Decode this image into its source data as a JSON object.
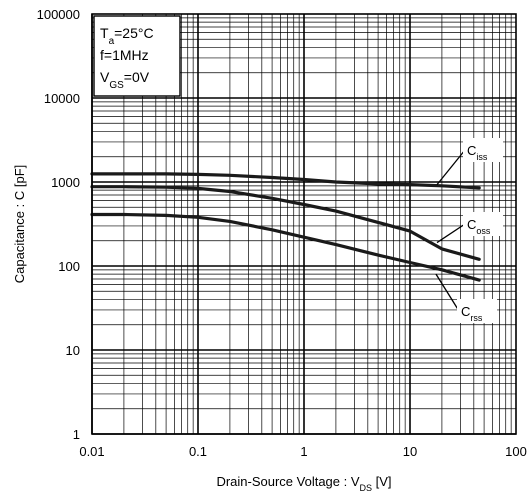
{
  "chart_data": {
    "type": "line",
    "xlabel": {
      "main": "Drain-Source Voltage : V",
      "sub": "DS",
      "unit": " [V]"
    },
    "ylabel": "Capacitance : C [pF]",
    "x_scale": "log",
    "y_scale": "log",
    "xlim": [
      0.01,
      100
    ],
    "ylim": [
      1,
      100000
    ],
    "x_ticks": [
      "0.01",
      "0.1",
      "1",
      "10",
      "100"
    ],
    "y_ticks": [
      "1",
      "10",
      "100",
      "1000",
      "10000",
      "100000"
    ],
    "grid": true,
    "conditions": [
      {
        "main": "T",
        "sub": "a",
        "rest": "=25°C"
      },
      {
        "main": "f=1MHz",
        "sub": "",
        "rest": ""
      },
      {
        "main": "V",
        "sub": "GS",
        "rest": "=0V"
      }
    ],
    "series": [
      {
        "name": "Ciss",
        "label_main": "C",
        "label_sub": "iss",
        "x": [
          0.01,
          0.02,
          0.05,
          0.1,
          0.2,
          0.5,
          1,
          2,
          5,
          10,
          20,
          45
        ],
        "y": [
          1250,
          1250,
          1250,
          1230,
          1200,
          1130,
          1070,
          1000,
          950,
          930,
          900,
          850
        ]
      },
      {
        "name": "Coss",
        "label_main": "C",
        "label_sub": "oss",
        "x": [
          0.01,
          0.02,
          0.05,
          0.1,
          0.2,
          0.5,
          1,
          2,
          5,
          10,
          20,
          45
        ],
        "y": [
          880,
          880,
          870,
          840,
          770,
          640,
          540,
          450,
          330,
          260,
          160,
          120
        ]
      },
      {
        "name": "Crss",
        "label_main": "C",
        "label_sub": "rss",
        "x": [
          0.01,
          0.02,
          0.05,
          0.1,
          0.2,
          0.5,
          1,
          2,
          5,
          10,
          20,
          45
        ],
        "y": [
          410,
          410,
          400,
          380,
          340,
          270,
          220,
          180,
          135,
          110,
          90,
          68
        ]
      }
    ]
  }
}
